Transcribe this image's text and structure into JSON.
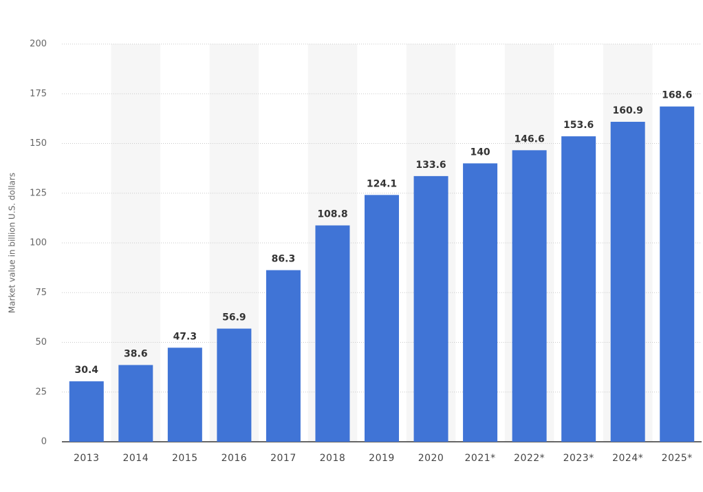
{
  "chart_data": {
    "type": "bar",
    "y_label": "Market value in billion U.S. dollars",
    "categories": [
      "2013",
      "2014",
      "2015",
      "2016",
      "2017",
      "2018",
      "2019",
      "2020",
      "2021*",
      "2022*",
      "2023*",
      "2024*",
      "2025*"
    ],
    "values": [
      30.4,
      38.6,
      47.3,
      56.9,
      86.3,
      108.8,
      124.1,
      133.6,
      140,
      146.6,
      153.6,
      160.9,
      168.6
    ],
    "color": "#4074d6",
    "ylim": [
      0,
      200
    ],
    "yticks": [
      0,
      25,
      50,
      75,
      100,
      125,
      150,
      175,
      200
    ],
    "grid": true
  }
}
